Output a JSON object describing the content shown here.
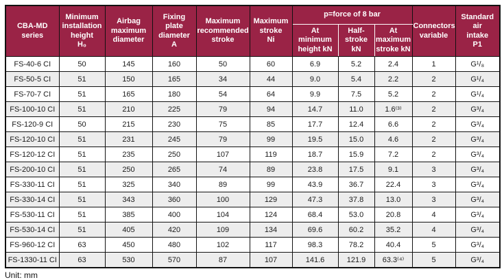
{
  "table": {
    "headers": {
      "series": "CBA-MD\nseries",
      "min_height": "Minimum\ninstallation\nheight\nH₀",
      "airbag_dia": "Airbag\nmaximum\ndiameter",
      "fixing_plate": "Fixing plate\ndiameter\nA",
      "max_rec_stroke": "Maximum\nrecommended\nstroke",
      "max_stroke": "Maximum\nstroke\nNi",
      "force_group": "p=force of 8 bar",
      "at_min_height": "At\nminimum\nheight kN",
      "half_stroke": "Half-stroke\nkN",
      "at_max_stroke": "At\nmaximum\nstroke kN",
      "connectors": "Connectors\nvariable",
      "air_intake": "Standard air\nintake\nP1"
    },
    "rows": [
      {
        "cells": [
          "FS-40-6 CI",
          "50",
          "145",
          "160",
          "50",
          "60",
          "6.9",
          "5.2",
          "2.4",
          "1",
          "G¹/₈"
        ]
      },
      {
        "cells": [
          "FS-50-5 CI",
          "51",
          "150",
          "165",
          "34",
          "44",
          "9.0",
          "5.4",
          "2.2",
          "2",
          "G¹/₄"
        ]
      },
      {
        "cells": [
          "FS-70-7 CI",
          "51",
          "165",
          "180",
          "54",
          "64",
          "9.9",
          "7.5",
          "5.2",
          "2",
          "G¹/₄"
        ]
      },
      {
        "cells": [
          "FS-100-10 CI",
          "51",
          "210",
          "225",
          "79",
          "94",
          "14.7",
          "11.0",
          "1.6⁽³⁾",
          "2",
          "G³/₄"
        ]
      },
      {
        "cells": [
          "FS-120-9 CI",
          "50",
          "215",
          "230",
          "75",
          "85",
          "17.7",
          "12.4",
          "6.6",
          "2",
          "G³/₄"
        ]
      },
      {
        "cells": [
          "FS-120-10 CI",
          "51",
          "231",
          "245",
          "79",
          "99",
          "19.5",
          "15.0",
          "4.6",
          "2",
          "G³/₄"
        ]
      },
      {
        "cells": [
          "FS-120-12 CI",
          "51",
          "235",
          "250",
          "107",
          "119",
          "18.7",
          "15.9",
          "7.2",
          "2",
          "G³/₄"
        ]
      },
      {
        "cells": [
          "FS-200-10 CI",
          "51",
          "250",
          "265",
          "74",
          "89",
          "23.8",
          "17.5",
          "9.1",
          "3",
          "G³/₄"
        ]
      },
      {
        "cells": [
          "FS-330-11 CI",
          "51",
          "325",
          "340",
          "89",
          "99",
          "43.9",
          "36.7",
          "22.4",
          "3",
          "G³/₄"
        ]
      },
      {
        "cells": [
          "FS-330-14 CI",
          "51",
          "343",
          "360",
          "100",
          "129",
          "47.3",
          "37.8",
          "13.0",
          "3",
          "G³/₄"
        ]
      },
      {
        "cells": [
          "FS-530-11 CI",
          "51",
          "385",
          "400",
          "104",
          "124",
          "68.4",
          "53.0",
          "20.8",
          "4",
          "G³/₄"
        ]
      },
      {
        "cells": [
          "FS-530-14 CI",
          "51",
          "405",
          "420",
          "109",
          "134",
          "69.6",
          "60.2",
          "35.2",
          "4",
          "G³/₄"
        ]
      },
      {
        "cells": [
          "FS-960-12 CI",
          "63",
          "450",
          "480",
          "102",
          "117",
          "98.3",
          "78.2",
          "40.4",
          "5",
          "G³/₄"
        ]
      },
      {
        "cells": [
          "FS-1330-11 CI",
          "63",
          "530",
          "570",
          "87",
          "107",
          "141.6",
          "121.9",
          "63.3⁽⁴⁾",
          "5",
          "G³/₄"
        ]
      }
    ]
  },
  "footer": {
    "unit_label": "Unit: mm"
  },
  "colors": {
    "header_bg": "#9a2346",
    "header_text": "#ffffff",
    "stripe_row": "#ededed",
    "border": "#111111"
  }
}
